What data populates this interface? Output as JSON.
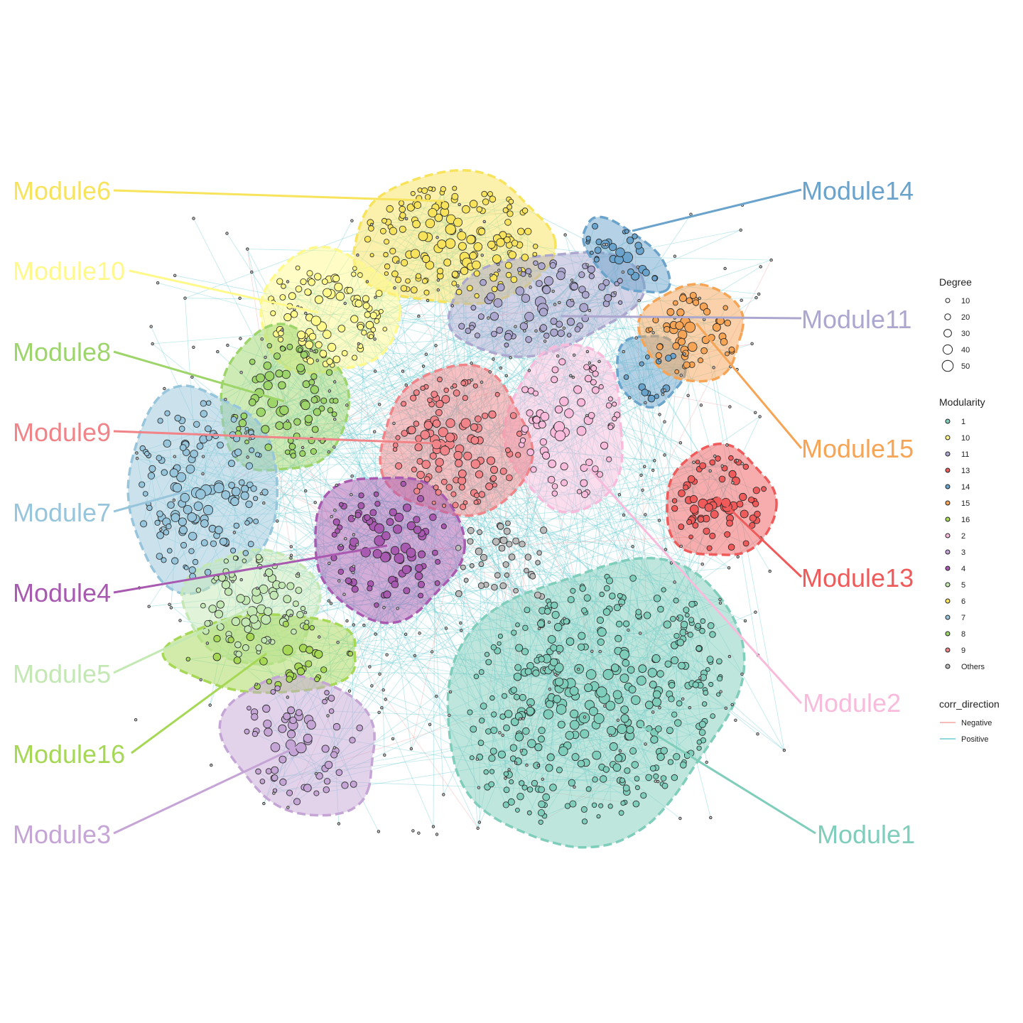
{
  "colors": {
    "edge_positive": "#6CCBD3",
    "edge_negative": "#F2A3A3",
    "node_stroke": "#222222",
    "others_fill": "#BBBBBB"
  },
  "modules": [
    {
      "id": "1",
      "label": "Module1",
      "color": "#7FCDBB"
    },
    {
      "id": "2",
      "label": "Module2",
      "color": "#F8BBDC"
    },
    {
      "id": "3",
      "label": "Module3",
      "color": "#C5A5D6"
    },
    {
      "id": "4",
      "label": "Module4",
      "color": "#A85AB0"
    },
    {
      "id": "5",
      "label": "Module5",
      "color": "#C4E8B4"
    },
    {
      "id": "6",
      "label": "Module6",
      "color": "#F7E45C"
    },
    {
      "id": "7",
      "label": "Module7",
      "color": "#97C5DB"
    },
    {
      "id": "8",
      "label": "Module8",
      "color": "#9ED56B"
    },
    {
      "id": "9",
      "label": "Module9",
      "color": "#F08488"
    },
    {
      "id": "10",
      "label": "Module10",
      "color": "#FFF98C"
    },
    {
      "id": "11",
      "label": "Module11",
      "color": "#ACA7CF"
    },
    {
      "id": "13",
      "label": "Module13",
      "color": "#EF5B5B"
    },
    {
      "id": "14",
      "label": "Module14",
      "color": "#6AA3CB"
    },
    {
      "id": "15",
      "label": "Module15",
      "color": "#F6A455"
    },
    {
      "id": "16",
      "label": "Module16",
      "color": "#A6D856"
    }
  ],
  "legend": {
    "degree": {
      "title": "Degree",
      "sizes": [
        "10",
        "20",
        "30",
        "40",
        "50"
      ]
    },
    "modularity": {
      "title": "Modularity",
      "items": [
        {
          "label": "1",
          "color": "#7FCDBB"
        },
        {
          "label": "10",
          "color": "#FFF98C"
        },
        {
          "label": "11",
          "color": "#ACA7CF"
        },
        {
          "label": "13",
          "color": "#EF5B5B"
        },
        {
          "label": "14",
          "color": "#6AA3CB"
        },
        {
          "label": "15",
          "color": "#F6A455"
        },
        {
          "label": "16",
          "color": "#A6D856"
        },
        {
          "label": "2",
          "color": "#F8BBDC"
        },
        {
          "label": "3",
          "color": "#C5A5D6"
        },
        {
          "label": "4",
          "color": "#A85AB0"
        },
        {
          "label": "5",
          "color": "#C4E8B4"
        },
        {
          "label": "6",
          "color": "#F7E45C"
        },
        {
          "label": "7",
          "color": "#97C5DB"
        },
        {
          "label": "8",
          "color": "#9ED56B"
        },
        {
          "label": "9",
          "color": "#F08488"
        },
        {
          "label": "Others",
          "color": "#BBBBBB"
        }
      ]
    },
    "corr_direction": {
      "title": "corr_direction",
      "items": [
        {
          "label": "Negative",
          "color": "#F2A3A3"
        },
        {
          "label": "Positive",
          "color": "#6CCBD3"
        }
      ]
    }
  }
}
